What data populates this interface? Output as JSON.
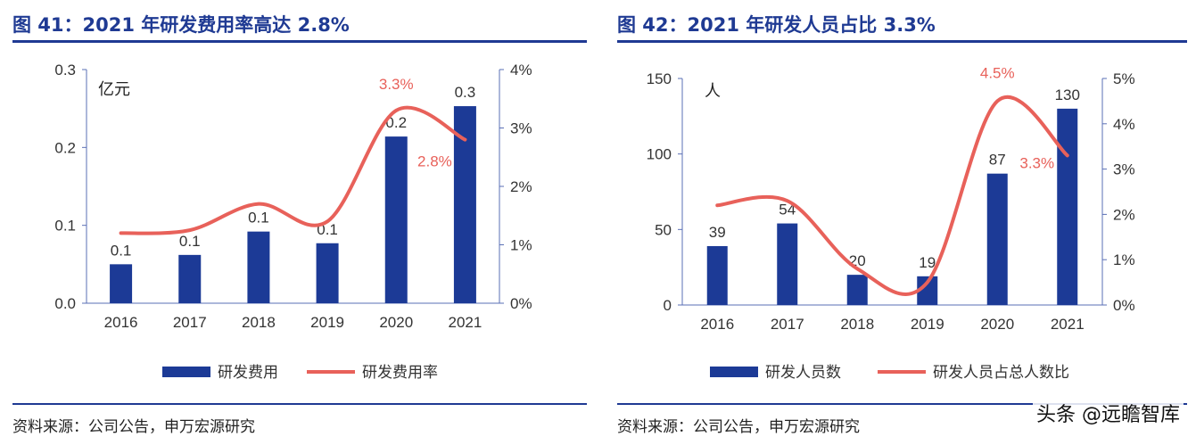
{
  "panels": [
    {
      "title": "图 41：2021 年研发费用率高达 2.8%",
      "source": "资料来源：公司公告，申万宏源研究"
    },
    {
      "title": "图 42：2021 年研发人员占比 3.3%",
      "source": "资料来源：公司公告，申万宏源研究"
    }
  ],
  "watermark": "头条 @远瞻智库",
  "colors": {
    "bar": "#1c3a96",
    "line": "#e8615a",
    "title": "#1f3a93"
  },
  "chart_data": [
    {
      "type": "bar",
      "categories": [
        "2016",
        "2017",
        "2018",
        "2019",
        "2020",
        "2021"
      ],
      "series": [
        {
          "name": "研发费用",
          "values": [
            0.05,
            0.062,
            0.092,
            0.077,
            0.214,
            0.253
          ],
          "data_labels": [
            "0.1",
            "0.1",
            "0.1",
            "0.1",
            "0.2",
            "0.3"
          ]
        },
        {
          "name": "研发费用率",
          "type": "line",
          "axis": "right",
          "values": [
            1.2,
            1.25,
            1.7,
            1.4,
            3.3,
            2.8
          ],
          "data_labels": [
            "",
            "",
            "",
            "",
            "3.3%",
            "2.8%"
          ]
        }
      ],
      "unit_label": "亿元",
      "ylim": [
        0,
        0.3
      ],
      "yticks": [
        "0.0",
        "0.1",
        "0.2",
        "0.3"
      ],
      "y2lim": [
        0,
        4
      ],
      "y2ticks": [
        "0%",
        "1%",
        "2%",
        "3%",
        "4%"
      ],
      "legend_position": "bottom"
    },
    {
      "type": "bar",
      "categories": [
        "2016",
        "2017",
        "2018",
        "2019",
        "2020",
        "2021"
      ],
      "series": [
        {
          "name": "研发人员数",
          "values": [
            39,
            54,
            20,
            19,
            87,
            130
          ],
          "data_labels": [
            "39",
            "54",
            "20",
            "19",
            "87",
            "130"
          ]
        },
        {
          "name": "研发人员占总人数比",
          "type": "line",
          "axis": "right",
          "values": [
            2.2,
            2.3,
            0.8,
            0.5,
            4.5,
            3.3
          ],
          "data_labels": [
            "",
            "",
            "",
            "",
            "4.5%",
            "3.3%"
          ]
        }
      ],
      "unit_label": "人",
      "ylim": [
        0,
        150
      ],
      "yticks": [
        "0",
        "50",
        "100",
        "150"
      ],
      "y2lim": [
        0,
        5
      ],
      "y2ticks": [
        "0%",
        "1%",
        "2%",
        "3%",
        "4%",
        "5%"
      ],
      "legend_position": "bottom"
    }
  ]
}
